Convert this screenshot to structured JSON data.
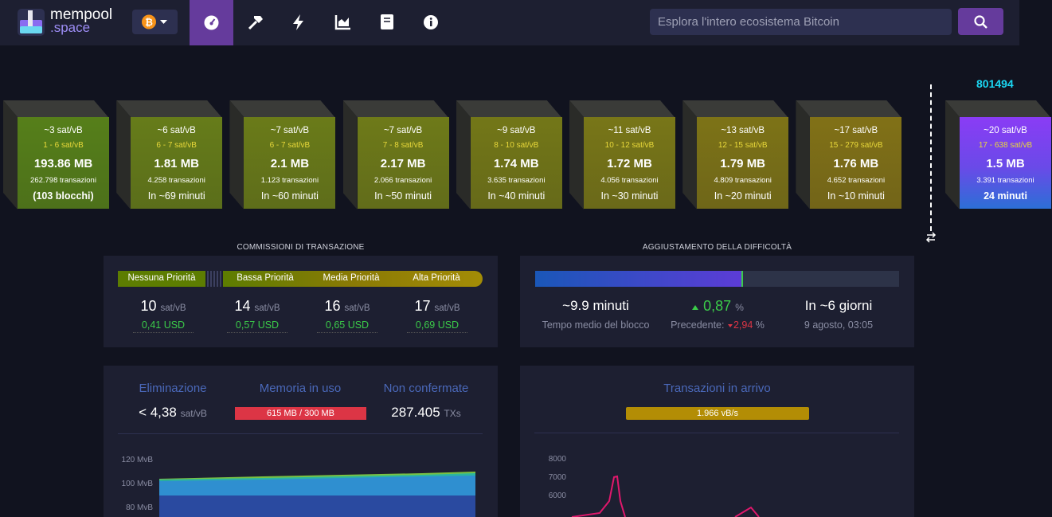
{
  "header": {
    "logo_top": "mempool",
    "logo_bottom": ".space",
    "search_placeholder": "Esplora l'intero ecosistema Bitcoin"
  },
  "mempool_blocks": [
    {
      "fee": "~3 sat/vB",
      "range": "1 - 6 sat/vB",
      "size": "193.86 MB",
      "txs": "262.798 transazioni",
      "eta": "(103 blocchi)"
    },
    {
      "fee": "~6 sat/vB",
      "range": "6 - 7 sat/vB",
      "size": "1.81 MB",
      "txs": "4.258 transazioni",
      "eta": "In ~69 minuti"
    },
    {
      "fee": "~7 sat/vB",
      "range": "6 - 7 sat/vB",
      "size": "2.1 MB",
      "txs": "1.123 transazioni",
      "eta": "In ~60 minuti"
    },
    {
      "fee": "~7 sat/vB",
      "range": "7 - 8 sat/vB",
      "size": "2.17 MB",
      "txs": "2.066 transazioni",
      "eta": "In ~50 minuti"
    },
    {
      "fee": "~9 sat/vB",
      "range": "8 - 10 sat/vB",
      "size": "1.74 MB",
      "txs": "3.635 transazioni",
      "eta": "In ~40 minuti"
    },
    {
      "fee": "~11 sat/vB",
      "range": "10 - 12 sat/vB",
      "size": "1.72 MB",
      "txs": "4.056 transazioni",
      "eta": "In ~30 minuti"
    },
    {
      "fee": "~13 sat/vB",
      "range": "12 - 15 sat/vB",
      "size": "1.79 MB",
      "txs": "4.809 transazioni",
      "eta": "In ~20 minuti"
    },
    {
      "fee": "~17 sat/vB",
      "range": "15 - 279 sat/vB",
      "size": "1.76 MB",
      "txs": "4.652 transazioni",
      "eta": "In ~10 minuti"
    }
  ],
  "mined_block": {
    "height": "801494",
    "fee": "~20 sat/vB",
    "range": "17 - 638 sat/vB",
    "size": "1.5 MB",
    "txs": "3.391 transazioni",
    "eta": "24 minuti"
  },
  "fees": {
    "title": "COMMISSIONI DI TRANSAZIONE",
    "tiers": [
      {
        "label": "Nessuna Priorità",
        "value": "10",
        "unit": "sat/vB",
        "usd": "0,41 USD"
      },
      {
        "label": "Bassa Priorità",
        "value": "14",
        "unit": "sat/vB",
        "usd": "0,57 USD"
      },
      {
        "label": "Media Priorità",
        "value": "16",
        "unit": "sat/vB",
        "usd": "0,65 USD"
      },
      {
        "label": "Alta Priorità",
        "value": "17",
        "unit": "sat/vB",
        "usd": "0,69 USD"
      }
    ]
  },
  "difficulty": {
    "title": "AGGIUSTAMENTO DELLA DIFFICOLTÀ",
    "avg_time": "~9.9 minuti",
    "avg_time_label": "Tempo medio del blocco",
    "change": "0,87",
    "change_unit": "%",
    "previous_label": "Precedente:",
    "previous": "2,94",
    "previous_unit": "%",
    "eta": "In ~6 giorni",
    "eta_date": "9 agosto, 03:05"
  },
  "mempool_stats": {
    "purging_label": "Eliminazione",
    "purging": "< 4,38",
    "purging_unit": "sat/vB",
    "memory_label": "Memoria in uso",
    "memory": "615 MB / 300 MB",
    "unconfirmed_label": "Non confermate",
    "unconfirmed": "287.405",
    "unconfirmed_unit": "TXs",
    "chart_ticks": [
      "120 MvB",
      "100 MvB",
      "80 MvB"
    ]
  },
  "incoming": {
    "title": "Transazioni in arrivo",
    "rate": "1.966 vB/s",
    "chart_ticks": [
      "8000",
      "7000",
      "6000"
    ]
  }
}
